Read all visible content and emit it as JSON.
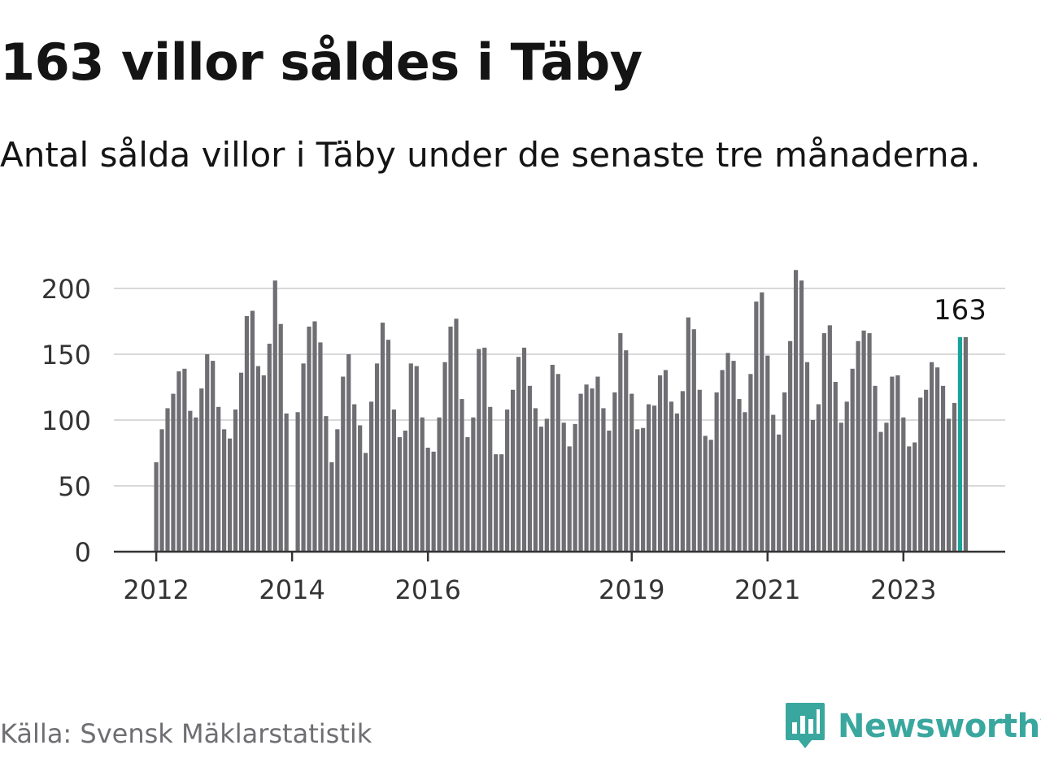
{
  "title": "163 villor såldes i Täby",
  "subtitle": "Antal sålda villor i Täby under de senaste tre månaderna.",
  "source": "Källa: Svensk Mäklarstatistik",
  "brand": {
    "name": "Newsworthy",
    "icon": "newsworthy-logo-icon"
  },
  "colors": {
    "bar": "#6e6e73",
    "highlight": "#1aa39b",
    "grid": "#d9d9d9",
    "axis": "#333333",
    "brand": "#3aa79f"
  },
  "chart_data": {
    "type": "bar",
    "title": "163 villor såldes i Täby",
    "xlabel": "",
    "ylabel": "",
    "ylim": [
      0,
      200
    ],
    "yticks": [
      0,
      50,
      100,
      150,
      200
    ],
    "yticklabels": [
      "0",
      "50",
      "100",
      "150",
      "200"
    ],
    "xticks": [
      {
        "label": "2012",
        "index": 0
      },
      {
        "label": "2014",
        "index": 24
      },
      {
        "label": "2016",
        "index": 48
      },
      {
        "label": "2019",
        "index": 84
      },
      {
        "label": "2021",
        "index": 108
      },
      {
        "label": "2023",
        "index": 132
      }
    ],
    "annotation": {
      "index": 142,
      "label": "163"
    },
    "highlight_index": 142,
    "grid": true,
    "values": [
      68,
      93,
      109,
      120,
      137,
      139,
      107,
      102,
      124,
      150,
      145,
      110,
      93,
      86,
      108,
      136,
      179,
      183,
      141,
      134,
      158,
      206,
      173,
      105,
      0,
      106,
      143,
      171,
      175,
      159,
      103,
      68,
      93,
      133,
      150,
      112,
      96,
      75,
      114,
      143,
      174,
      161,
      108,
      87,
      92,
      143,
      141,
      102,
      79,
      76,
      102,
      144,
      171,
      177,
      116,
      87,
      102,
      154,
      155,
      110,
      74,
      74,
      108,
      123,
      148,
      155,
      126,
      109,
      95,
      101,
      142,
      135,
      98,
      80,
      97,
      120,
      127,
      124,
      133,
      109,
      92,
      121,
      166,
      153,
      120,
      93,
      94,
      112,
      111,
      134,
      138,
      114,
      105,
      122,
      178,
      169,
      123,
      88,
      85,
      121,
      138,
      151,
      145,
      116,
      106,
      135,
      190,
      197,
      149,
      104,
      89,
      121,
      160,
      214,
      206,
      144,
      100,
      112,
      166,
      172,
      129,
      98,
      114,
      139,
      160,
      168,
      166,
      126,
      91,
      98,
      133,
      134,
      102,
      80,
      83,
      117,
      123,
      144,
      140,
      126,
      101,
      113,
      163,
      163
    ]
  }
}
